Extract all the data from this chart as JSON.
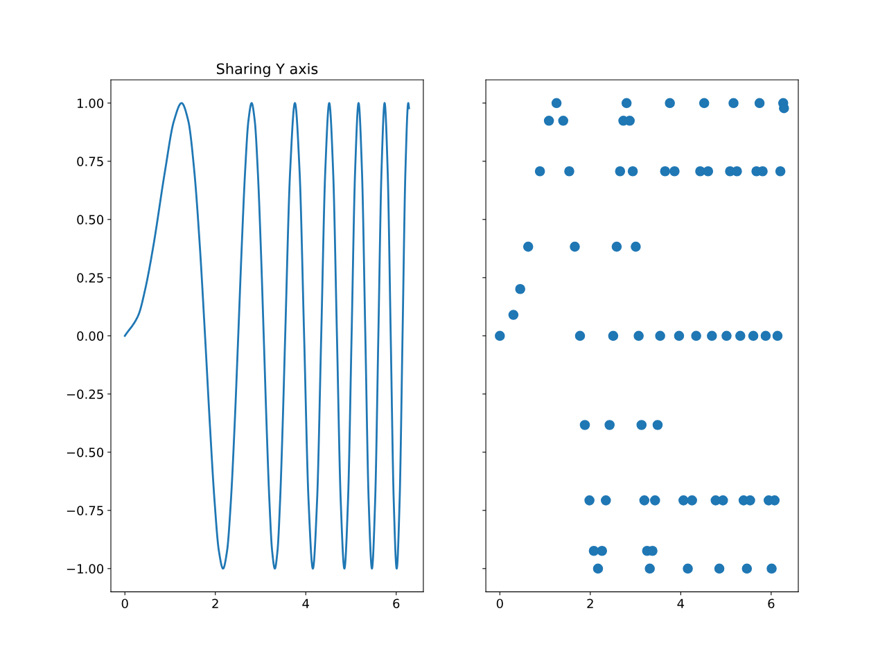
{
  "chart_data": [
    {
      "type": "line",
      "title": "Sharing Y axis",
      "marker": "none",
      "line_style": "solid",
      "grid": false,
      "legend": false,
      "x": [
        0,
        0.3,
        0.45,
        0.6267,
        0.8862,
        1.0854,
        1.2533,
        1.4012,
        1.535,
        1.658,
        1.7725,
        1.88,
        1.9817,
        2.0784,
        2.1708,
        2.2594,
        2.3447,
        2.427,
        2.5066,
        2.5838,
        2.6587,
        2.7315,
        2.8025,
        2.8717,
        2.9393,
        3.0054,
        3.07,
        3.1333,
        3.1953,
        3.2561,
        3.316,
        3.3747,
        3.4324,
        3.4891,
        3.5449,
        3.654,
        3.7599,
        3.863,
        3.9633,
        4.0612,
        4.1568,
        4.2502,
        4.3416,
        4.4311,
        4.5189,
        4.605,
        4.6895,
        4.7725,
        4.8541,
        4.9343,
        5.0133,
        5.091,
        5.1675,
        5.243,
        5.3174,
        5.3907,
        5.4631,
        5.5345,
        5.605,
        5.6746,
        5.7434,
        5.8114,
        5.8786,
        5.945,
        6.0107,
        6.0757,
        6.14,
        6.2036,
        6.2666,
        6.2832
      ],
      "series": [
        {
          "color": "#1f77b4",
          "values": [
            0,
            0.09,
            0.201,
            0.383,
            0.707,
            0.924,
            1,
            0.924,
            0.707,
            0.383,
            0,
            -0.383,
            -0.707,
            -0.924,
            -1,
            -0.924,
            -0.707,
            -0.383,
            0,
            0.383,
            0.707,
            0.924,
            1,
            0.924,
            0.707,
            0.383,
            0,
            -0.383,
            -0.707,
            -0.924,
            -1,
            -0.924,
            -0.707,
            -0.383,
            0,
            0.707,
            1,
            0.707,
            0,
            -0.707,
            -1,
            -0.707,
            0,
            0.707,
            1,
            0.707,
            0,
            -0.707,
            -1,
            -0.707,
            0,
            0.707,
            1,
            0.707,
            0,
            -0.707,
            -1,
            -0.707,
            0,
            0.707,
            1,
            0.707,
            0,
            -0.707,
            -1,
            -0.707,
            0,
            0.707,
            1,
            0.978
          ]
        }
      ],
      "xlim": [
        -0.31,
        6.6
      ],
      "xticks": [
        0,
        2,
        4,
        6
      ],
      "ylim": [
        -1.1,
        1.1
      ],
      "yticks": [
        {
          "value": -1,
          "label": "−1.00"
        },
        {
          "value": -0.75,
          "label": "−0.75"
        },
        {
          "value": -0.5,
          "label": "−0.50"
        },
        {
          "value": -0.25,
          "label": "−0.25"
        },
        {
          "value": 0,
          "label": "0.00"
        },
        {
          "value": 0.25,
          "label": "0.25"
        },
        {
          "value": 0.5,
          "label": "0.50"
        },
        {
          "value": 0.75,
          "label": "0.75"
        },
        {
          "value": 1,
          "label": "1.00"
        }
      ]
    },
    {
      "type": "scatter",
      "marker": "circle",
      "grid": false,
      "legend": false,
      "tick_labels": "x",
      "x": [
        0,
        0.3,
        0.45,
        0.6267,
        0.8862,
        1.0854,
        1.2533,
        1.4012,
        1.535,
        1.658,
        1.7725,
        1.88,
        1.9817,
        2.0784,
        2.1708,
        2.2594,
        2.3447,
        2.427,
        2.5066,
        2.5838,
        2.6587,
        2.7315,
        2.8025,
        2.8717,
        2.9393,
        3.0054,
        3.07,
        3.1333,
        3.1953,
        3.2561,
        3.316,
        3.3747,
        3.4324,
        3.4891,
        3.5449,
        3.654,
        3.7599,
        3.863,
        3.9633,
        4.0612,
        4.1568,
        4.2502,
        4.3416,
        4.4311,
        4.5189,
        4.605,
        4.6895,
        4.7725,
        4.8541,
        4.9343,
        5.0133,
        5.091,
        5.1675,
        5.243,
        5.3174,
        5.3907,
        5.4631,
        5.5345,
        5.605,
        5.6746,
        5.7434,
        5.8114,
        5.8786,
        5.945,
        6.0107,
        6.0757,
        6.14,
        6.2036,
        6.2666,
        6.2832
      ],
      "series": [
        {
          "color": "#1f77b4",
          "values": [
            0,
            0.09,
            0.201,
            0.383,
            0.707,
            0.924,
            1,
            0.924,
            0.707,
            0.383,
            0,
            -0.383,
            -0.707,
            -0.924,
            -1,
            -0.924,
            -0.707,
            -0.383,
            0,
            0.383,
            0.707,
            0.924,
            1,
            0.924,
            0.707,
            0.383,
            0,
            -0.383,
            -0.707,
            -0.924,
            -1,
            -0.924,
            -0.707,
            -0.383,
            0,
            0.707,
            1,
            0.707,
            0,
            -0.707,
            -1,
            -0.707,
            0,
            0.707,
            1,
            0.707,
            0,
            -0.707,
            -1,
            -0.707,
            0,
            0.707,
            1,
            0.707,
            0,
            -0.707,
            -1,
            -0.707,
            0,
            0.707,
            1,
            0.707,
            0,
            -0.707,
            -1,
            -0.707,
            0,
            0.707,
            1,
            0.978
          ]
        }
      ],
      "xlim": [
        -0.31,
        6.6
      ],
      "xticks": [
        0,
        2,
        4,
        6
      ],
      "ylim": [
        -1.1,
        1.1
      ],
      "yticks": [
        {
          "value": -1,
          "label": null
        },
        {
          "value": -0.75,
          "label": null
        },
        {
          "value": -0.5,
          "label": null
        },
        {
          "value": -0.25,
          "label": null
        },
        {
          "value": 0,
          "label": null
        },
        {
          "value": 0.25,
          "label": null
        },
        {
          "value": 0.5,
          "label": null
        },
        {
          "value": 0.75,
          "label": null
        },
        {
          "value": 1,
          "label": null
        }
      ]
    }
  ]
}
